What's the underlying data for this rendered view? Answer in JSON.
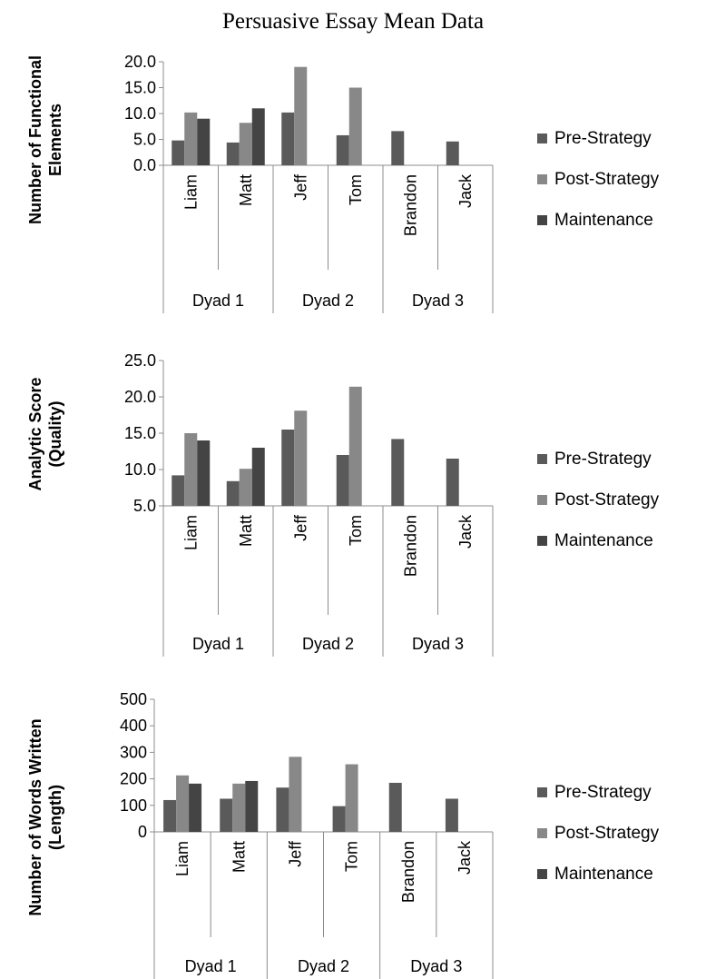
{
  "title": "Persuasive Essay Mean Data",
  "colors": {
    "Pre-Strategy": "#5a5a5a",
    "Post-Strategy": "#888888",
    "Maintenance": "#444444"
  },
  "chart_data": [
    {
      "type": "bar",
      "ylabel": [
        "Number of Functional",
        "Elements"
      ],
      "ylim": [
        0,
        20
      ],
      "yticks": [
        "0.0",
        "5.0",
        "10.0",
        "15.0",
        "20.0"
      ],
      "categories": [
        "Liam",
        "Matt",
        "Jeff",
        "Tom",
        "Brandon",
        "Jack"
      ],
      "groups": [
        {
          "label": "Dyad 1",
          "members": [
            "Liam",
            "Matt"
          ]
        },
        {
          "label": "Dyad 2",
          "members": [
            "Jeff",
            "Tom"
          ]
        },
        {
          "label": "Dyad 3",
          "members": [
            "Brandon",
            "Jack"
          ]
        }
      ],
      "series": [
        {
          "name": "Pre-Strategy",
          "values": [
            4.8,
            4.4,
            10.2,
            5.8,
            6.6,
            4.6
          ]
        },
        {
          "name": "Post-Strategy",
          "values": [
            10.2,
            8.2,
            19.0,
            15.0,
            null,
            null
          ]
        },
        {
          "name": "Maintenance",
          "values": [
            9.0,
            11.0,
            null,
            null,
            null,
            null
          ]
        }
      ],
      "legend": "right"
    },
    {
      "type": "bar",
      "ylabel": [
        "Analytic Score",
        "(Quality)"
      ],
      "ylim": [
        5,
        25
      ],
      "yticks": [
        "5.0",
        "10.0",
        "15.0",
        "20.0",
        "25.0"
      ],
      "categories": [
        "Liam",
        "Matt",
        "Jeff",
        "Tom",
        "Brandon",
        "Jack"
      ],
      "groups": [
        {
          "label": "Dyad 1",
          "members": [
            "Liam",
            "Matt"
          ]
        },
        {
          "label": "Dyad 2",
          "members": [
            "Jeff",
            "Tom"
          ]
        },
        {
          "label": "Dyad 3",
          "members": [
            "Brandon",
            "Jack"
          ]
        }
      ],
      "series": [
        {
          "name": "Pre-Strategy",
          "values": [
            9.2,
            8.4,
            15.5,
            12.0,
            14.2,
            11.5
          ]
        },
        {
          "name": "Post-Strategy",
          "values": [
            15.0,
            10.1,
            18.1,
            21.4,
            null,
            null
          ]
        },
        {
          "name": "Maintenance",
          "values": [
            14.0,
            13.0,
            null,
            null,
            null,
            null
          ]
        }
      ],
      "legend": "right"
    },
    {
      "type": "bar",
      "ylabel": [
        "Number of Words Written",
        "(Length)"
      ],
      "ylim": [
        0,
        500
      ],
      "yticks": [
        "0",
        "100",
        "200",
        "300",
        "400",
        "500"
      ],
      "categories": [
        "Liam",
        "Matt",
        "Jeff",
        "Tom",
        "Brandon",
        "Jack"
      ],
      "groups": [
        {
          "label": "Dyad 1",
          "members": [
            "Liam",
            "Matt"
          ]
        },
        {
          "label": "Dyad 2",
          "members": [
            "Jeff",
            "Tom"
          ]
        },
        {
          "label": "Dyad 3",
          "members": [
            "Brandon",
            "Jack"
          ]
        }
      ],
      "series": [
        {
          "name": "Pre-Strategy",
          "values": [
            120,
            125,
            167,
            97,
            185,
            125
          ]
        },
        {
          "name": "Post-Strategy",
          "values": [
            213,
            182,
            283,
            255,
            null,
            null
          ]
        },
        {
          "name": "Maintenance",
          "values": [
            182,
            192,
            null,
            null,
            null,
            null
          ]
        }
      ],
      "legend": "right"
    }
  ]
}
